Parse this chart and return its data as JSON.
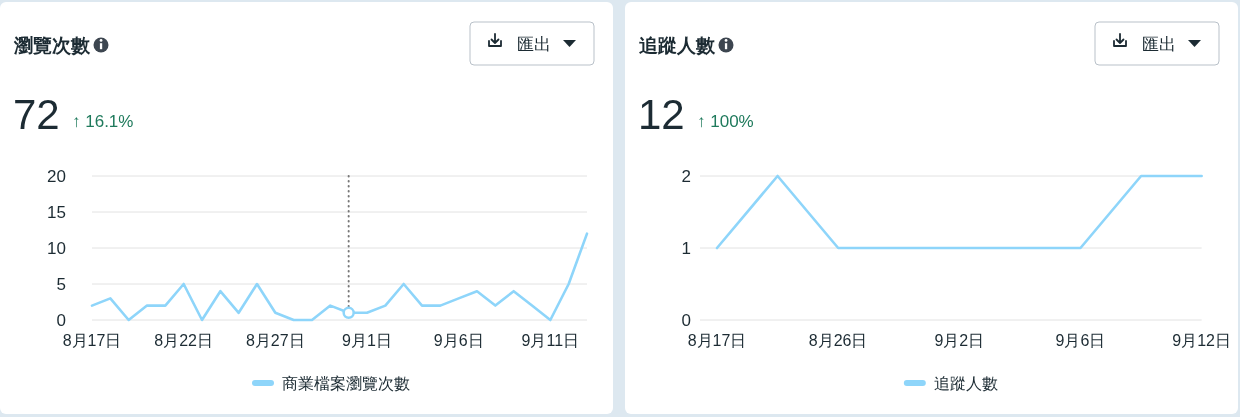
{
  "chart_data": [
    {
      "type": "line",
      "title": "瀏覽次數",
      "annotations": [
        "72",
        "↑ 16.1%",
        "匯出"
      ],
      "x": [
        "--08-17",
        "--08-18",
        "--08-19",
        "--08-20",
        "--08-21",
        "--08-22",
        "--08-23",
        "--08-24",
        "--08-25",
        "--08-26",
        "--08-27",
        "--08-28",
        "--08-29",
        "--08-30",
        "--08-31",
        "--09-01",
        "--09-02",
        "--09-03",
        "--09-04",
        "--09-05",
        "--09-06",
        "--09-07",
        "--09-08",
        "--09-09",
        "--09-10",
        "--09-11",
        "--09-12",
        "--09-13"
      ],
      "xlim": [
        "--08-17",
        "--09-13"
      ],
      "xticks": [
        {
          "value": "--08-17",
          "label": "8月17日"
        },
        {
          "value": "--08-22",
          "label": "8月22日"
        },
        {
          "value": "--08-27",
          "label": "8月27日"
        },
        {
          "value": "--09-01",
          "label": "9月1日"
        },
        {
          "value": "--09-06",
          "label": "9月6日"
        },
        {
          "value": "--09-11",
          "label": "9月11日"
        }
      ],
      "ylim": [
        0,
        20
      ],
      "yticks": [
        0,
        5,
        10,
        15,
        20
      ],
      "grid": "y",
      "legend": "bottom",
      "ref_lines": [
        {
          "axis": "x",
          "value": "--08-31",
          "color": "#777777",
          "line_style": "dotted"
        }
      ],
      "series": [
        {
          "name": "商業檔案瀏覽次數",
          "color": "#8ed5fa",
          "values": [
            2,
            3,
            0,
            2,
            2,
            5,
            0,
            4,
            1,
            5,
            1,
            0,
            0,
            2,
            1,
            1,
            2,
            5,
            2,
            2,
            3,
            4,
            2,
            4,
            2,
            0,
            5,
            12
          ]
        },
        {
          "type": "scatter",
          "marker": "circle",
          "color": "#8ed5fa",
          "x": [
            "--08-31"
          ],
          "values": [
            1
          ]
        }
      ]
    },
    {
      "type": "line",
      "title": "追蹤人數",
      "annotations": [
        "12",
        "↑ 100%",
        "匯出"
      ],
      "categories": [
        "8月17日",
        null,
        "8月26日",
        null,
        "9月2日",
        null,
        "9月6日",
        null,
        "9月12日"
      ],
      "ylim": [
        0,
        2
      ],
      "yticks": [
        0,
        1,
        2
      ],
      "grid": "y",
      "legend": "bottom",
      "series": [
        {
          "name": "追蹤人數",
          "color": "#8ed5fa",
          "values": [
            1,
            2,
            1,
            1,
            1,
            1,
            1,
            2,
            2
          ]
        }
      ]
    }
  ]
}
